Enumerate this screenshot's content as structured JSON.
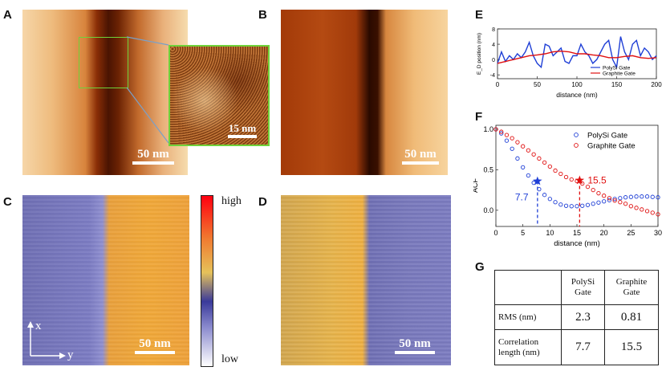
{
  "panels": {
    "A": "A",
    "B": "B",
    "C": "C",
    "D": "D",
    "E": "E",
    "F": "F",
    "G": "G"
  },
  "scalebars": {
    "a": "50 nm",
    "a_inset": "15 nm",
    "b": "50 nm",
    "c": "50 nm",
    "d": "50 nm"
  },
  "colorbar": {
    "high": "high",
    "low": "low"
  },
  "axes_c": {
    "x": "x",
    "y": "y"
  },
  "colors": {
    "polysi": "#1f3fd6",
    "graphite": "#e01010",
    "frame_green": "#6fd23a"
  },
  "chart_data": [
    {
      "id": "E",
      "type": "line",
      "xlabel": "distance (nm)",
      "ylabel": "E_D position (nm)",
      "xlim": [
        0,
        200
      ],
      "ylim": [
        -5,
        8
      ],
      "xticks": [
        0,
        50,
        100,
        150,
        200
      ],
      "yticks": [
        -4,
        0,
        4,
        8
      ],
      "legend": [
        "PolySi Gate",
        "Graphite Gate"
      ],
      "series": [
        {
          "name": "PolySi Gate",
          "x": [
            0,
            5,
            10,
            15,
            20,
            25,
            30,
            35,
            40,
            45,
            50,
            55,
            60,
            65,
            70,
            75,
            80,
            85,
            90,
            95,
            100,
            105,
            110,
            115,
            120,
            125,
            130,
            135,
            140,
            145,
            150,
            155,
            160,
            165,
            170,
            175,
            180,
            185,
            190,
            195,
            200
          ],
          "y": [
            -1,
            2,
            -0.5,
            1,
            0,
            1.5,
            0.5,
            2,
            4.5,
            1,
            -1,
            -2,
            4,
            3.5,
            1,
            2,
            3,
            -0.5,
            -1,
            1,
            1,
            4,
            2,
            1,
            -1,
            0,
            2,
            4,
            5,
            0,
            -2,
            6,
            2,
            0,
            4,
            5,
            1,
            3,
            2,
            0,
            1
          ]
        },
        {
          "name": "Graphite Gate",
          "x": [
            0,
            10,
            20,
            30,
            40,
            50,
            60,
            70,
            80,
            90,
            100,
            110,
            120,
            130,
            140,
            150,
            160,
            170,
            180,
            190,
            200
          ],
          "y": [
            -1,
            -0.5,
            0,
            0.5,
            1,
            1.2,
            1.5,
            2,
            2.2,
            2,
            1.5,
            1.5,
            1.2,
            1,
            0.5,
            0.5,
            0.8,
            1,
            0.5,
            0.3,
            0.5
          ]
        }
      ]
    },
    {
      "id": "F",
      "type": "scatter",
      "xlabel": "distance (nm)",
      "ylabel": "ACF",
      "xlim": [
        0,
        30
      ],
      "ylim": [
        -0.2,
        1.05
      ],
      "xticks": [
        0,
        5,
        10,
        15,
        20,
        25,
        30
      ],
      "yticks": [
        0.0,
        0.5,
        1.0
      ],
      "legend": [
        "PolySi Gate",
        "Graphite Gate"
      ],
      "series": [
        {
          "name": "PolySi Gate",
          "x": [
            0,
            1,
            2,
            3,
            4,
            5,
            6,
            7,
            8,
            9,
            10,
            11,
            12,
            13,
            14,
            15,
            16,
            17,
            18,
            19,
            20,
            21,
            22,
            23,
            24,
            25,
            26,
            27,
            28,
            29,
            30
          ],
          "y": [
            1.0,
            0.95,
            0.86,
            0.76,
            0.64,
            0.53,
            0.43,
            0.34,
            0.26,
            0.19,
            0.14,
            0.1,
            0.07,
            0.055,
            0.05,
            0.05,
            0.055,
            0.065,
            0.08,
            0.095,
            0.11,
            0.125,
            0.14,
            0.15,
            0.16,
            0.165,
            0.17,
            0.17,
            0.17,
            0.165,
            0.16
          ]
        },
        {
          "name": "Graphite Gate",
          "x": [
            0,
            1,
            2,
            3,
            4,
            5,
            6,
            7,
            8,
            9,
            10,
            11,
            12,
            13,
            14,
            15,
            16,
            17,
            18,
            19,
            20,
            21,
            22,
            23,
            24,
            25,
            26,
            27,
            28,
            29,
            30
          ],
          "y": [
            1.0,
            0.97,
            0.93,
            0.89,
            0.84,
            0.79,
            0.74,
            0.69,
            0.64,
            0.59,
            0.54,
            0.49,
            0.45,
            0.41,
            0.38,
            0.36,
            0.33,
            0.29,
            0.25,
            0.21,
            0.18,
            0.15,
            0.12,
            0.1,
            0.08,
            0.05,
            0.03,
            0.01,
            -0.01,
            -0.03,
            -0.05
          ]
        }
      ],
      "markers": [
        {
          "name": "PolySi Gate",
          "x": 7.7,
          "y": 0.36,
          "label": "7.7"
        },
        {
          "name": "Graphite Gate",
          "x": 15.5,
          "y": 0.37,
          "label": "15.5"
        }
      ]
    },
    {
      "id": "G",
      "type": "table",
      "header": [
        "",
        "PolySi\nGate",
        "Graphite\nGate"
      ],
      "rows": [
        {
          "label": "RMS (nm)",
          "polysi": "2.3",
          "graphite": "0.81"
        },
        {
          "label": "Correlation\nlength (nm)",
          "polysi": "7.7",
          "graphite": "15.5"
        }
      ]
    }
  ],
  "table_g": {
    "h1a": "PolySi",
    "h1b": "Gate",
    "h2a": "Graphite",
    "h2b": "Gate",
    "r1": "RMS (nm)",
    "r1a": "2.3",
    "r1b": "0.81",
    "r2a": "Correlation",
    "r2b": "length (nm)",
    "r2c": "7.7",
    "r2d": "15.5"
  }
}
